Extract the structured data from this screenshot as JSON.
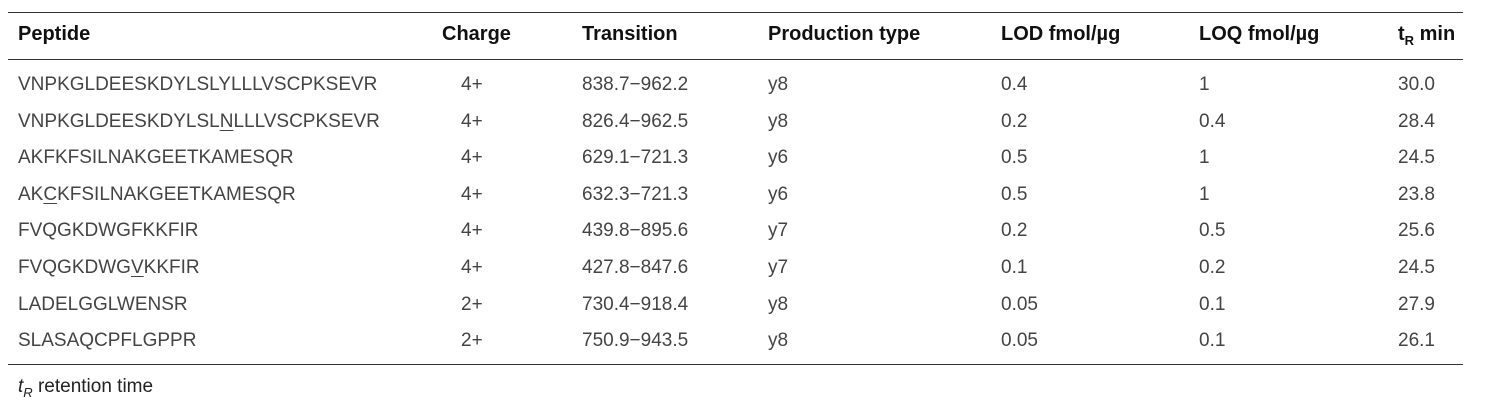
{
  "table": {
    "headers": {
      "peptide": "Peptide",
      "charge": "Charge",
      "transition": "Transition",
      "production_type": "Production type",
      "lod": "LOD fmol/µg",
      "loq": "LOQ fmol/µg",
      "tr_t": "t",
      "tr_sub": "R",
      "tr_unit": " min"
    },
    "rows": [
      {
        "peptide": [
          "VNPKGLDEESKDYLSLYLLLVSCPKSEVR",
          "",
          ""
        ],
        "charge": "4+",
        "transition": "838.7−962.2",
        "type": "y8",
        "lod": "0.4",
        "loq": "1",
        "tr": "30.0"
      },
      {
        "peptide": [
          "VNPKGLDEESKDYLSL",
          "N",
          "LLLVSCPKSEVR"
        ],
        "charge": "4+",
        "transition": "826.4−962.5",
        "type": "y8",
        "lod": "0.2",
        "loq": "0.4",
        "tr": "28.4"
      },
      {
        "peptide": [
          "AKFKFSILNAKGEETKAMESQR",
          "",
          ""
        ],
        "charge": "4+",
        "transition": "629.1−721.3",
        "type": "y6",
        "lod": "0.5",
        "loq": "1",
        "tr": "24.5"
      },
      {
        "peptide": [
          "AK",
          "C",
          "KFSILNAKGEETKAMESQR"
        ],
        "charge": "4+",
        "transition": "632.3−721.3",
        "type": "y6",
        "lod": "0.5",
        "loq": "1",
        "tr": "23.8"
      },
      {
        "peptide": [
          "FVQGKDWGFKKFIR",
          "",
          ""
        ],
        "charge": "4+",
        "transition": "439.8−895.6",
        "type": "y7",
        "lod": "0.2",
        "loq": "0.5",
        "tr": "25.6"
      },
      {
        "peptide": [
          "FVQGKDWG",
          "V",
          "KKFIR"
        ],
        "charge": "4+",
        "transition": "427.8−847.6",
        "type": "y7",
        "lod": "0.1",
        "loq": "0.2",
        "tr": "24.5"
      },
      {
        "peptide": [
          "LADELGGLWENSR",
          "",
          ""
        ],
        "charge": "2+",
        "transition": "730.4−918.4",
        "type": "y8",
        "lod": "0.05",
        "loq": "0.1",
        "tr": "27.9"
      },
      {
        "peptide": [
          "SLASAQCPFLGPPR",
          "",
          ""
        ],
        "charge": "2+",
        "transition": "750.9−943.5",
        "type": "y8",
        "lod": "0.05",
        "loq": "0.1",
        "tr": "26.1"
      }
    ]
  },
  "footnote": {
    "t": "t",
    "sub": "R",
    "text": " retention time"
  }
}
